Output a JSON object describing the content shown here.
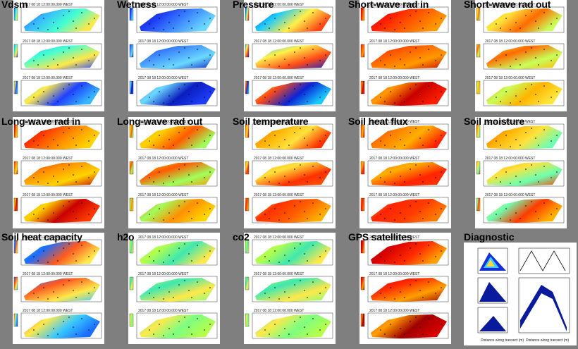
{
  "panels": [
    {
      "label": "Vdsm",
      "palette": [
        "#1e40ff",
        "#36b8ff",
        "#44ffd2",
        "#ffe84a"
      ]
    },
    {
      "label": "Wetness",
      "palette": [
        "#0a1dbf",
        "#1c3cf7",
        "#3f8cff",
        "#6bd9ff"
      ]
    },
    {
      "label": "Pressure",
      "palette": [
        "#0a23d6",
        "#19c9ff",
        "#fff04a",
        "#ff4a16"
      ]
    },
    {
      "label": "Short-wave rad in",
      "palette": [
        "#c80000",
        "#ff1d00",
        "#ff5e00",
        "#ff9a00"
      ]
    },
    {
      "label": "Short-wave rad out",
      "palette": [
        "#ffb400",
        "#ffe63c",
        "#ff6a00",
        "#c8ff5a"
      ]
    },
    {
      "label": "Long-wave rad in",
      "palette": [
        "#c80000",
        "#ff3a00",
        "#ff9000",
        "#ffd400"
      ]
    },
    {
      "label": "Long-wave rad out",
      "palette": [
        "#ff9000",
        "#ffd400",
        "#ff5a00",
        "#9eff5c"
      ]
    },
    {
      "label": "Soil temperature",
      "palette": [
        "#ff5e00",
        "#ffb000",
        "#ffe23c",
        "#ff3000"
      ]
    },
    {
      "label": "Soil heat flux",
      "palette": [
        "#ff3a00",
        "#ff7a00",
        "#ffb000",
        "#ff2400"
      ]
    },
    {
      "label": "Soil moisture",
      "palette": [
        "#ff3a00",
        "#ffb000",
        "#ffe23c",
        "#6dffb0"
      ]
    },
    {
      "label": "Soil heat capacity",
      "palette": [
        "#38c8ff",
        "#1a6cff",
        "#ff5a20",
        "#ffe84a"
      ]
    },
    {
      "label": "h2o",
      "palette": [
        "#7cff82",
        "#b6ff4a",
        "#3fe8b0",
        "#ffe84a"
      ]
    },
    {
      "label": "co2",
      "palette": [
        "#7cff82",
        "#b6ff4a",
        "#3fe8b0",
        "#ffe84a"
      ]
    },
    {
      "label": "GPS satellites",
      "palette": [
        "#a00000",
        "#d80000",
        "#ff2a00",
        "#ffa000"
      ]
    }
  ],
  "diagnostic": {
    "label": "Diagnostic",
    "xlabel": "Distance along transect (m)"
  },
  "header_text": "2017 08 18 12:00:00.000 WEST"
}
